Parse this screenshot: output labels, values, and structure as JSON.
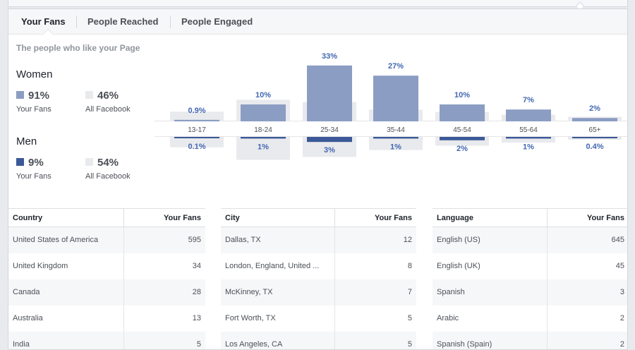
{
  "tabs": [
    {
      "label": "Your Fans",
      "active": true
    },
    {
      "label": "People Reached",
      "active": false
    },
    {
      "label": "People Engaged",
      "active": false
    }
  ],
  "subtitle": "The people who like your Page",
  "women": {
    "title": "Women",
    "fans_value": "91%",
    "fans_label": "Your Fans",
    "facebook_value": "46%",
    "facebook_label": "All Facebook"
  },
  "men": {
    "title": "Men",
    "fans_value": "9%",
    "fans_label": "Your Fans",
    "facebook_value": "54%",
    "facebook_label": "All Facebook"
  },
  "colors": {
    "women_bar": "#8b9dc3",
    "men_bar": "#3b5998",
    "facebook_bar": "#e9eaed",
    "label": "#4267b2"
  },
  "chart_data": {
    "type": "bar",
    "categories": [
      "13-17",
      "18-24",
      "25-34",
      "35-44",
      "45-54",
      "55-64",
      "65+"
    ],
    "series": [
      {
        "name": "Women",
        "values": [
          0.9,
          10,
          33,
          27,
          10,
          7,
          2
        ]
      },
      {
        "name": "Men",
        "values": [
          0.1,
          1,
          3,
          1,
          2,
          1,
          0.4
        ]
      }
    ],
    "women_labels": [
      "0.9%",
      "10%",
      "33%",
      "27%",
      "10%",
      "7%",
      "2%"
    ],
    "men_labels": [
      "0.1%",
      "1%",
      "3%",
      "1%",
      "2%",
      "1%",
      "0.4%"
    ],
    "all_facebook_women": [
      5.3,
      11.8,
      10.5,
      6.4,
      5.1,
      3.7,
      2.5
    ],
    "all_facebook_men": [
      5.7,
      12.5,
      10.9,
      7.2,
      4.8,
      3.1,
      1.6
    ]
  },
  "tables": [
    {
      "col1": "Country",
      "col2": "Your Fans",
      "rows": [
        [
          "United States of America",
          "595"
        ],
        [
          "United Kingdom",
          "34"
        ],
        [
          "Canada",
          "28"
        ],
        [
          "Australia",
          "13"
        ],
        [
          "India",
          "5"
        ]
      ]
    },
    {
      "col1": "City",
      "col2": "Your Fans",
      "rows": [
        [
          "Dallas, TX",
          "12"
        ],
        [
          "London, England, United ...",
          "8"
        ],
        [
          "McKinney, TX",
          "7"
        ],
        [
          "Fort Worth, TX",
          "5"
        ],
        [
          "Los Angeles, CA",
          "5"
        ]
      ]
    },
    {
      "col1": "Language",
      "col2": "Your Fans",
      "rows": [
        [
          "English (US)",
          "645"
        ],
        [
          "English (UK)",
          "45"
        ],
        [
          "Spanish",
          "3"
        ],
        [
          "Arabic",
          "2"
        ],
        [
          "Spanish (Spain)",
          "2"
        ]
      ]
    }
  ]
}
